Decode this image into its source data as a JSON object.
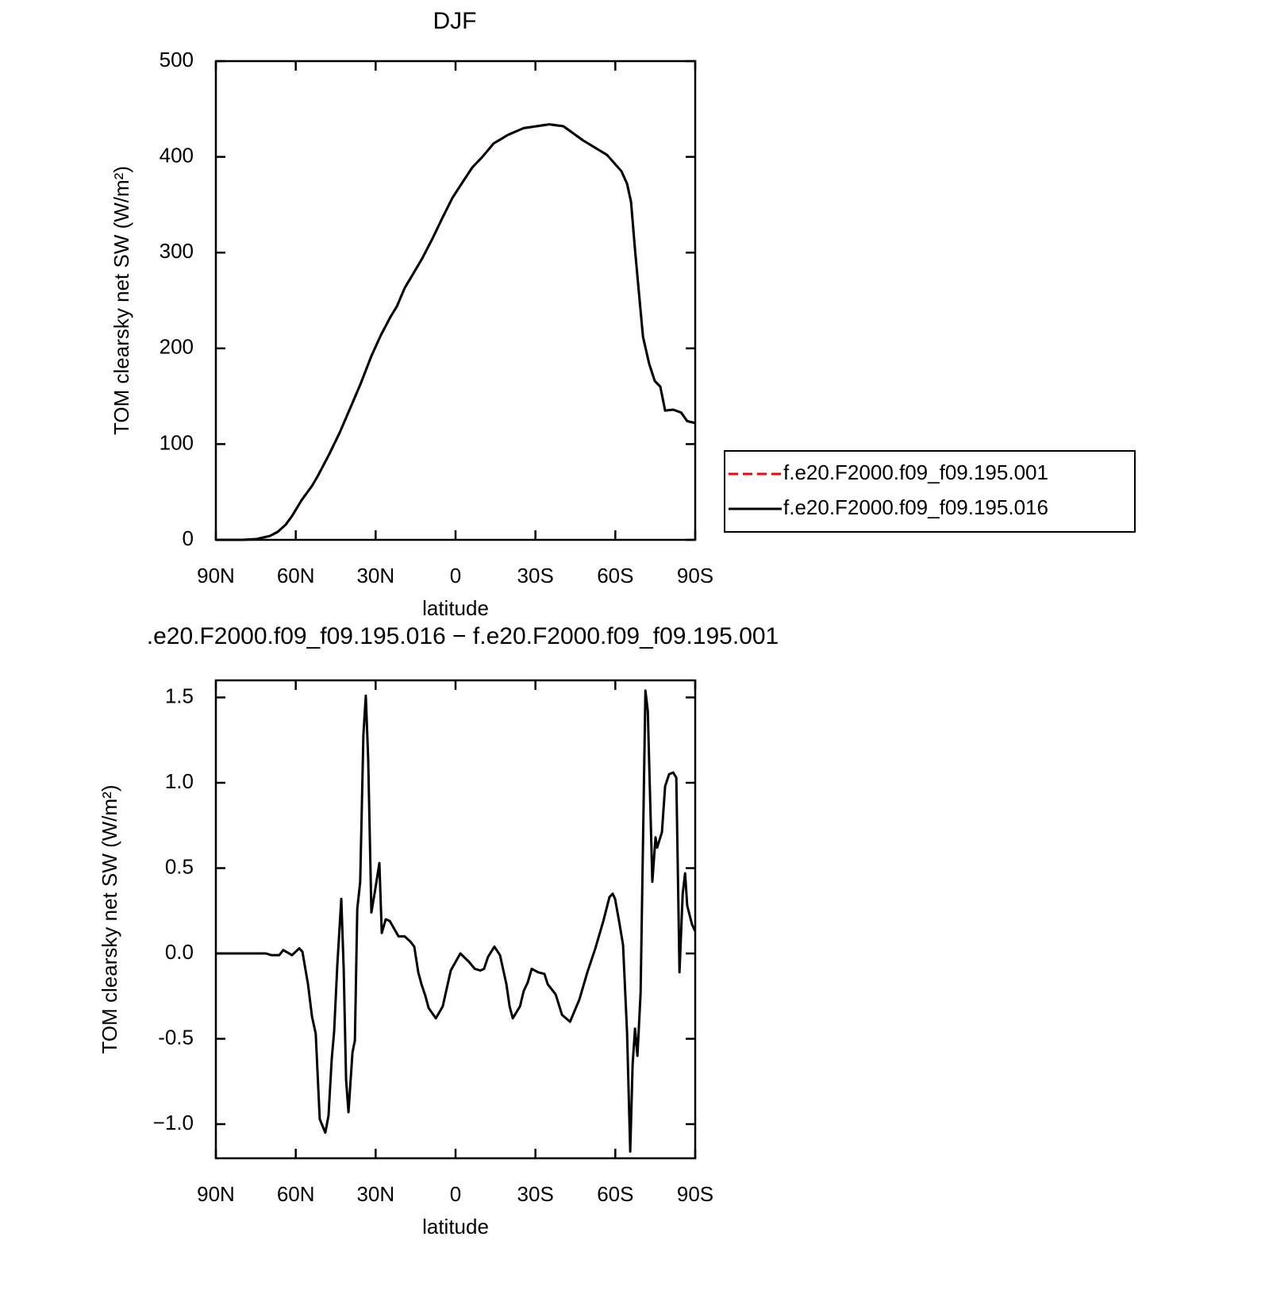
{
  "chart_data": [
    {
      "type": "line",
      "title": "DJF",
      "xlabel": "latitude",
      "ylabel": "TOM clearsky net SW (W/m²)",
      "x": [
        90,
        79.9,
        74.8,
        69.7,
        66.8,
        63.8,
        61.4,
        57.8,
        53.9,
        51.8,
        47.4,
        43.5,
        38.4,
        35.5,
        31.6,
        28.0,
        24.4,
        22.0,
        19.1,
        16.1,
        12.5,
        8.6,
        4.8,
        1.2,
        -1.8,
        -6.3,
        -10.1,
        -14.3,
        -19.7,
        -25.6,
        -35.2,
        -40.5,
        -48.0,
        -56.9,
        -62.3,
        -64.4,
        -65.9,
        -67.4,
        -68.9,
        -70.4,
        -72.7,
        -74.8,
        -76.9,
        -78.7,
        -81.7,
        -84.7,
        -87.0,
        -90
      ],
      "series": [
        {
          "name": "f.e20.F2000.f09_f09.195.001",
          "color": "#ff0000",
          "dash": true,
          "values": [
            0,
            0,
            0.8,
            4.1,
            8.3,
            15.8,
            24.9,
            41.5,
            56.4,
            66.3,
            89.6,
            112,
            145,
            164,
            192,
            214,
            233,
            244,
            263,
            277,
            294,
            315,
            337,
            357,
            370,
            389,
            400,
            414,
            423,
            430,
            434,
            432,
            417,
            402,
            385,
            372,
            353,
            303,
            257,
            212,
            184,
            166,
            160,
            135,
            136,
            133,
            124,
            122
          ]
        },
        {
          "name": "f.e20.F2000.f09_f09.195.016",
          "color": "#000000",
          "dash": false,
          "values": [
            0,
            0,
            0.8,
            4.1,
            8.3,
            15.8,
            24.9,
            41.5,
            56.4,
            66.3,
            89.6,
            112,
            145,
            164,
            192,
            214,
            233,
            244,
            263,
            277,
            294,
            315,
            337,
            357,
            370,
            389,
            400,
            414,
            423,
            430,
            434,
            432,
            417,
            402,
            385,
            372,
            353,
            303,
            257,
            212,
            184,
            166,
            160,
            135,
            136,
            133,
            124,
            122
          ]
        }
      ],
      "xlim": [
        90,
        -90
      ],
      "xticks": [
        {
          "value": 90,
          "label": "90N"
        },
        {
          "value": 60,
          "label": "60N"
        },
        {
          "value": 30,
          "label": "30N"
        },
        0,
        {
          "value": -30,
          "label": "30S"
        },
        {
          "value": -60,
          "label": "60S"
        },
        {
          "value": -90,
          "label": "90S"
        }
      ],
      "ylim": [
        0,
        500
      ],
      "yticks": [
        0,
        100,
        200,
        300,
        400,
        500
      ],
      "legend": true
    },
    {
      "type": "line",
      "title": ".e20.F2000.f09_f09.195.016 − f.e20.F2000.f09_f09.195.001",
      "xlabel": "latitude",
      "ylabel": "TOM clearsky net SW (W/m²)",
      "x": [
        90,
        71.2,
        69.1,
        66.2,
        64.7,
        61.4,
        58.7,
        57.5,
        55.4,
        53.9,
        52.5,
        51.0,
        48.9,
        47.7,
        46.5,
        45.6,
        44.4,
        42.9,
        42.0,
        41.1,
        40.2,
        38.7,
        37.8,
        36.9,
        35.8,
        34.6,
        33.7,
        32.8,
        31.6,
        30.1,
        28.6,
        27.7,
        26.2,
        24.7,
        21.4,
        19.1,
        17.0,
        15.5,
        14.0,
        12.8,
        11.3,
        10.1,
        7.4,
        4.8,
        1.8,
        -1.8,
        -5.1,
        -7.2,
        -9.3,
        -10.7,
        -12.2,
        -14.6,
        -16.7,
        -19.1,
        -20.3,
        -21.5,
        -24.2,
        -25.6,
        -27.1,
        -28.6,
        -31.0,
        -33.4,
        -34.6,
        -37.6,
        -40.0,
        -43.0,
        -46.5,
        -49.5,
        -52.5,
        -55.5,
        -57.8,
        -59.0,
        -59.9,
        -61.4,
        -62.9,
        -64.4,
        -65.6,
        -66.5,
        -67.4,
        -68.3,
        -69.5,
        -71.3,
        -72.2,
        -73.9,
        -75.1,
        -75.7,
        -77.5,
        -78.7,
        -80.2,
        -81.7,
        -82.9,
        -84.1,
        -85.3,
        -86.2,
        -87.0,
        -88.8,
        -90
      ],
      "series": [
        {
          "name": null,
          "color": "#000000",
          "dash": false,
          "values": [
            0,
            0,
            -0.01,
            -0.01,
            0.02,
            -0.01,
            0.03,
            0.01,
            -0.18,
            -0.37,
            -0.47,
            -0.97,
            -1.05,
            -0.95,
            -0.62,
            -0.46,
            -0.07,
            0.32,
            -0.09,
            -0.74,
            -0.93,
            -0.58,
            -0.51,
            0.26,
            0.42,
            1.28,
            1.51,
            1.14,
            0.24,
            0.38,
            0.53,
            0.12,
            0.2,
            0.19,
            0.1,
            0.1,
            0.07,
            0.04,
            -0.11,
            -0.18,
            -0.25,
            -0.32,
            -0.38,
            -0.31,
            -0.1,
            0,
            -0.05,
            -0.09,
            -0.1,
            -0.09,
            -0.02,
            0.04,
            -0.01,
            -0.18,
            -0.31,
            -0.38,
            -0.31,
            -0.22,
            -0.17,
            -0.09,
            -0.11,
            -0.12,
            -0.18,
            -0.24,
            -0.36,
            -0.4,
            -0.27,
            -0.11,
            0.03,
            0.19,
            0.33,
            0.35,
            0.32,
            0.19,
            0.05,
            -0.46,
            -1.16,
            -0.65,
            -0.44,
            -0.6,
            -0.23,
            1.54,
            1.42,
            0.42,
            0.68,
            0.62,
            0.71,
            0.98,
            1.05,
            1.06,
            1.03,
            -0.11,
            0.35,
            0.47,
            0.28,
            0.17,
            0.13
          ]
        }
      ],
      "xlim": [
        90,
        -90
      ],
      "xticks": [
        {
          "value": 90,
          "label": "90N"
        },
        {
          "value": 60,
          "label": "60N"
        },
        {
          "value": 30,
          "label": "30N"
        },
        0,
        {
          "value": -30,
          "label": "30S"
        },
        {
          "value": -60,
          "label": "60S"
        },
        {
          "value": -90,
          "label": "90S"
        }
      ],
      "ylim": [
        -1.2,
        1.6
      ],
      "yticks": [
        {
          "value": -1,
          "label": "−1.0"
        },
        -0.5,
        {
          "value": 0,
          "label": "0.0"
        },
        0.5,
        {
          "value": 1,
          "label": "1.0"
        },
        1.5
      ],
      "legend": false
    }
  ]
}
